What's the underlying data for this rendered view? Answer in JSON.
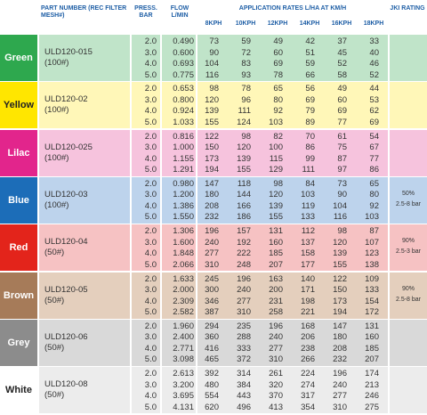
{
  "header": {
    "part_number": "PART NUMBER (REC FILTER MESH#)",
    "pressure": "PRESS. BAR",
    "flow": "FLOW L/MIN",
    "rates_title": "APPLICATION RATES L/HA AT KM/H",
    "speeds": [
      "8KPH",
      "10KPH",
      "12KPH",
      "14KPH",
      "16KPH",
      "18KPH"
    ],
    "jki": "JKI RATING"
  },
  "groups": [
    {
      "name": "Green",
      "part": "ULD120-015",
      "mesh": "(100#)",
      "pressures": [
        "2.0",
        "3.0",
        "4.0",
        "5.0"
      ],
      "flows": [
        "0.490",
        "0.600",
        "0.693",
        "0.775"
      ],
      "rates": [
        [
          73,
          59,
          49,
          42,
          37,
          33
        ],
        [
          90,
          72,
          60,
          51,
          45,
          40
        ],
        [
          104,
          83,
          69,
          59,
          52,
          46
        ],
        [
          116,
          93,
          78,
          66,
          58,
          52
        ]
      ],
      "jki": []
    },
    {
      "name": "Yellow",
      "part": "ULD120-02",
      "mesh": "(100#)",
      "pressures": [
        "2.0",
        "3.0",
        "4.0",
        "5.0"
      ],
      "flows": [
        "0.653",
        "0.800",
        "0.924",
        "1.033"
      ],
      "rates": [
        [
          98,
          78,
          65,
          56,
          49,
          44
        ],
        [
          120,
          96,
          80,
          69,
          60,
          53
        ],
        [
          139,
          111,
          92,
          79,
          69,
          62
        ],
        [
          155,
          124,
          103,
          89,
          77,
          69
        ]
      ],
      "jki": []
    },
    {
      "name": "Lilac",
      "part": "ULD120-025",
      "mesh": "(100#)",
      "pressures": [
        "2.0",
        "3.0",
        "4.0",
        "5.0"
      ],
      "flows": [
        "0.816",
        "1.000",
        "1.155",
        "1.291"
      ],
      "rates": [
        [
          122,
          98,
          82,
          70,
          61,
          54
        ],
        [
          150,
          120,
          100,
          86,
          75,
          67
        ],
        [
          173,
          139,
          115,
          99,
          87,
          77
        ],
        [
          194,
          155,
          129,
          111,
          97,
          86
        ]
      ],
      "jki": []
    },
    {
      "name": "Blue",
      "part": "ULD120-03",
      "mesh": "(100#)",
      "pressures": [
        "2.0",
        "3.0",
        "4.0",
        "5.0"
      ],
      "flows": [
        "0.980",
        "1.200",
        "1.386",
        "1.550"
      ],
      "rates": [
        [
          147,
          118,
          98,
          84,
          73,
          65
        ],
        [
          180,
          144,
          120,
          103,
          90,
          80
        ],
        [
          208,
          166,
          139,
          119,
          104,
          92
        ],
        [
          232,
          186,
          155,
          133,
          116,
          103
        ]
      ],
      "jki": [
        "50%",
        "2.5-8 bar"
      ]
    },
    {
      "name": "Red",
      "part": "ULD120-04",
      "mesh": "(50#)",
      "pressures": [
        "2.0",
        "3.0",
        "4.0",
        "5.0"
      ],
      "flows": [
        "1.306",
        "1.600",
        "1.848",
        "2.066"
      ],
      "rates": [
        [
          196,
          157,
          131,
          112,
          98,
          87
        ],
        [
          240,
          192,
          160,
          137,
          120,
          107
        ],
        [
          277,
          222,
          185,
          158,
          139,
          123
        ],
        [
          310,
          248,
          207,
          177,
          155,
          138
        ]
      ],
      "jki": [
        "90%",
        "2.5-3 bar"
      ]
    },
    {
      "name": "Brown",
      "part": "ULD120-05",
      "mesh": "(50#)",
      "pressures": [
        "2.0",
        "3.0",
        "4.0",
        "5.0"
      ],
      "flows": [
        "1.633",
        "2.000",
        "2.309",
        "2.582"
      ],
      "rates": [
        [
          245,
          196,
          163,
          140,
          122,
          109
        ],
        [
          300,
          240,
          200,
          171,
          150,
          133
        ],
        [
          346,
          277,
          231,
          198,
          173,
          154
        ],
        [
          387,
          310,
          258,
          221,
          194,
          172
        ]
      ],
      "jki": [
        "90%",
        "2.5-8 bar"
      ]
    },
    {
      "name": "Grey",
      "part": "ULD120-06",
      "mesh": "(50#)",
      "pressures": [
        "2.0",
        "3.0",
        "4.0",
        "5.0"
      ],
      "flows": [
        "1.960",
        "2.400",
        "2.771",
        "3.098"
      ],
      "rates": [
        [
          294,
          235,
          196,
          168,
          147,
          131
        ],
        [
          360,
          288,
          240,
          206,
          180,
          160
        ],
        [
          416,
          333,
          277,
          238,
          208,
          185
        ],
        [
          465,
          372,
          310,
          266,
          232,
          207
        ]
      ],
      "jki": []
    },
    {
      "name": "White",
      "part": "ULD120-08",
      "mesh": "(50#)",
      "pressures": [
        "2.0",
        "3.0",
        "4.0",
        "5.0"
      ],
      "flows": [
        "2.613",
        "3.200",
        "3.695",
        "4.131"
      ],
      "rates": [
        [
          392,
          314,
          261,
          224,
          196,
          174
        ],
        [
          480,
          384,
          320,
          274,
          240,
          213
        ],
        [
          554,
          443,
          370,
          317,
          277,
          246
        ],
        [
          620,
          496,
          413,
          354,
          310,
          275
        ]
      ],
      "jki": []
    }
  ]
}
